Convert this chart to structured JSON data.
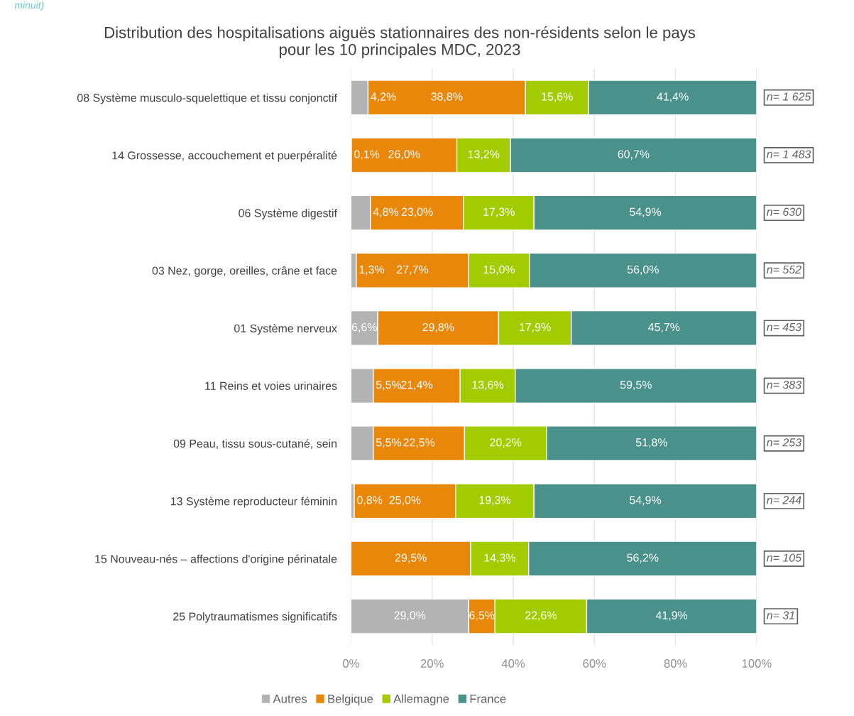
{
  "chart_data": {
    "type": "bar",
    "orientation": "horizontal",
    "stacked": true,
    "title": "Distribution des hospitalisations aiguës stationnaires des non-résidents selon le pays\npour les 10 principales MDC, 2023",
    "categories": [
      "08 Système musculo-squelettique et tissu conjonctif",
      "14 Grossesse, accouchement et puerpéralité",
      "06 Système digestif",
      "03 Nez, gorge, oreilles, crâne et face",
      "01 Système nerveux",
      "11 Reins et voies urinaires",
      "09 Peau, tissu sous-cutané, sein",
      "13 Système reproducteur féminin",
      "15 Nouveau-nés – affections d'origine périnatale",
      "25 Polytraumatismes significatifs"
    ],
    "series": [
      {
        "name": "Autres",
        "color": "#b3b3b3",
        "values": [
          4.2,
          0.1,
          4.8,
          1.3,
          6.6,
          5.5,
          5.5,
          0.8,
          null,
          29.0
        ],
        "value_labels": [
          "4,2%",
          "0,1%",
          "4,8%",
          "1,3%",
          "6,6%",
          "5,5%",
          "5,5%",
          "0,8%",
          null,
          "29,0%"
        ]
      },
      {
        "name": "Belgique",
        "color": "#e8870a",
        "values": [
          38.8,
          26.0,
          23.0,
          27.7,
          29.8,
          21.4,
          22.5,
          25.0,
          29.5,
          6.5
        ],
        "value_labels": [
          "38,8%",
          "26,0%",
          "23,0%",
          "27,7%",
          "29,8%",
          "21,4%",
          "22,5%",
          "25,0%",
          "29,5%",
          "6,5%"
        ]
      },
      {
        "name": "Allemagne",
        "color": "#a3cc00",
        "values": [
          15.6,
          13.2,
          17.3,
          15.0,
          17.9,
          13.6,
          20.2,
          19.3,
          14.3,
          22.6
        ],
        "value_labels": [
          "15,6%",
          "13,2%",
          "17,3%",
          "15,0%",
          "17,9%",
          "13,6%",
          "20,2%",
          "19,3%",
          "14,3%",
          "22,6%"
        ]
      },
      {
        "name": "France",
        "color": "#4a918c",
        "values": [
          41.4,
          60.7,
          54.9,
          56.0,
          45.7,
          59.5,
          51.8,
          54.9,
          56.2,
          41.9
        ],
        "value_labels": [
          "41,4%",
          "60,7%",
          "54,9%",
          "56,0%",
          "45,7%",
          "59,5%",
          "51,8%",
          "54,9%",
          "56,2%",
          "41,9%"
        ]
      }
    ],
    "xlim": [
      0,
      100
    ],
    "xticks": [
      {
        "value": 0,
        "label": "0%"
      },
      {
        "value": 20,
        "label": "20%"
      },
      {
        "value": 40,
        "label": "40%"
      },
      {
        "value": 60,
        "label": "60%"
      },
      {
        "value": 80,
        "label": "80%"
      },
      {
        "value": 100,
        "label": "100%"
      }
    ],
    "grid": "x",
    "legend": "bottom",
    "annotations": [
      "minuit)",
      "n= 1 625",
      "n= 1 483",
      "n= 630",
      "n= 552",
      "n= 453",
      "n= 383",
      "n= 253",
      "n= 244",
      "n= 105",
      "n= 31"
    ]
  }
}
